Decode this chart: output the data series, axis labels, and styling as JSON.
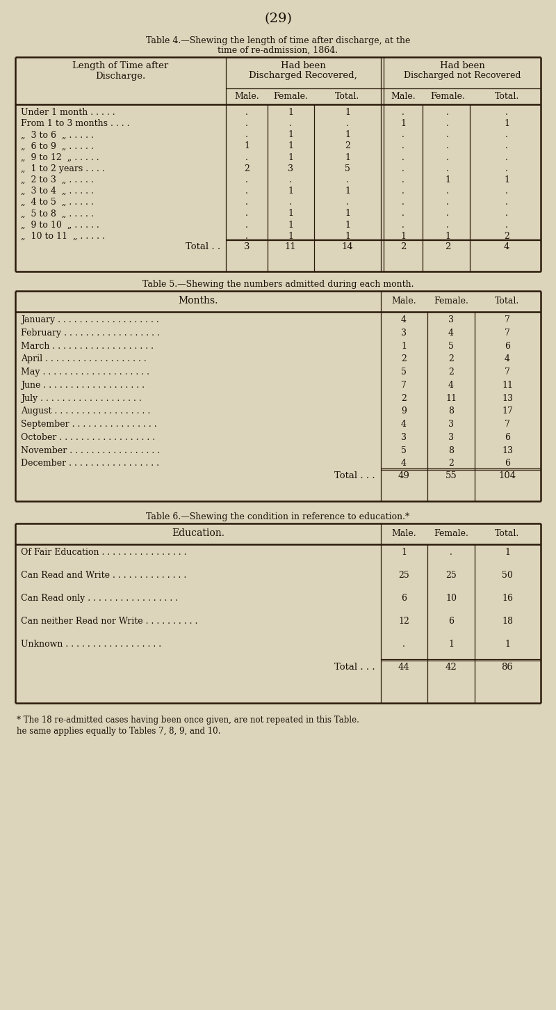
{
  "bg_color": "#ddd5bb",
  "page_number": "(29)",
  "table4_title1": "Table 4.—Shewing the length of time after discharge, at the",
  "table4_title2": "time of re-admission, 1864.",
  "table4_col1_header1": "Length of Time after",
  "table4_col1_header2": "Discharge.",
  "table4_col2_header1": "Had been",
  "table4_col2_header2": "Discharged Recovered,",
  "table4_col3_header1": "Had been",
  "table4_col3_header2": "Discharged not Recovered",
  "table4_subheaders": [
    "Male.",
    "Female.",
    "Total.",
    "Male.",
    "Female.",
    "Total."
  ],
  "table4_rows": [
    [
      "Under 1 month . . . . .",
      ".",
      "1",
      "1",
      ".",
      ".",
      "."
    ],
    [
      "From 1 to 3 months . . . .",
      ".",
      ".",
      ".",
      "1",
      ".",
      "1"
    ],
    [
      "„  3 to 6  „ . . . . .",
      ".",
      "1",
      "1",
      ".",
      ".",
      "."
    ],
    [
      "„  6 to 9  „ . . . . .",
      "1",
      "1",
      "2",
      ".",
      ".",
      "."
    ],
    [
      "„  9 to 12  „ . . . . .",
      ".",
      "1",
      "1",
      ".",
      ".",
      "."
    ],
    [
      "„  1 to 2 years . . . .",
      "2",
      "3",
      "5",
      ".",
      ".",
      "."
    ],
    [
      "„  2 to 3  „ . . . . .",
      ".",
      ".",
      ".",
      ".",
      "1",
      "1"
    ],
    [
      "„  3 to 4  „ . . . . .",
      ".",
      "1",
      "1",
      ".",
      ".",
      "."
    ],
    [
      "„  4 to 5  „ . . . . .",
      ".",
      ".",
      ".",
      ".",
      ".",
      "."
    ],
    [
      "„  5 to 8  „ . . . . .",
      ".",
      "1",
      "1",
      ".",
      ".",
      "."
    ],
    [
      "„  9 to 10  „ . . . . .",
      ".",
      "1",
      "1",
      ".",
      ".",
      "."
    ],
    [
      "„  10 to 11  „ . . . . .",
      ".",
      "1",
      "1",
      "1",
      "1",
      "2"
    ]
  ],
  "table4_total": [
    "Total . .",
    "3",
    "11",
    "14",
    "2",
    "2",
    "4"
  ],
  "table5_title": "Table 5.—Shewing the numbers admitted during each month.",
  "table5_col1_header": "Months.",
  "table5_subheaders": [
    "Male.",
    "Female.",
    "Total."
  ],
  "table5_rows": [
    [
      "January . . . . . . . . . . . . . . . . . . .",
      "4",
      "3",
      "7"
    ],
    [
      "February . . . . . . . . . . . . . . . . . .",
      "3",
      "4",
      "7"
    ],
    [
      "March . . . . . . . . . . . . . . . . . . .",
      "1",
      "5",
      "6"
    ],
    [
      "April . . . . . . . . . . . . . . . . . . .",
      "2",
      "2",
      "4"
    ],
    [
      "May . . . . . . . . . . . . . . . . . . . .",
      "5",
      "2",
      "7"
    ],
    [
      "June . . . . . . . . . . . . . . . . . . .",
      "7",
      "4",
      "11"
    ],
    [
      "July . . . . . . . . . . . . . . . . . . .",
      "2",
      "11",
      "13"
    ],
    [
      "August . . . . . . . . . . . . . . . . . .",
      "9",
      "8",
      "17"
    ],
    [
      "September . . . . . . . . . . . . . . . .",
      "4",
      "3",
      "7"
    ],
    [
      "October . . . . . . . . . . . . . . . . . .",
      "3",
      "3",
      "6"
    ],
    [
      "November . . . . . . . . . . . . . . . . .",
      "5",
      "8",
      "13"
    ],
    [
      "December . . . . . . . . . . . . . . . . .",
      "4",
      "2",
      "6"
    ]
  ],
  "table5_total": [
    "Total . . .",
    "49",
    "55",
    "104"
  ],
  "table6_title": "Table 6.—Shewing the condition in reference to education.*",
  "table6_col1_header": "Education.",
  "table6_subheaders": [
    "Male.",
    "Female.",
    "Total."
  ],
  "table6_rows": [
    [
      "Of Fair Education . . . . . . . . . . . . . . . .",
      "1",
      ".",
      "1"
    ],
    [
      "Can Read and Write . . . . . . . . . . . . . .",
      "25",
      "25",
      "50"
    ],
    [
      "Can Read only . . . . . . . . . . . . . . . . .",
      "6",
      "10",
      "16"
    ],
    [
      "Can neither Read nor Write . . . . . . . . . .",
      "12",
      "6",
      "18"
    ],
    [
      "Unknown . . . . . . . . . . . . . . . . . .",
      ".",
      "1",
      "1"
    ]
  ],
  "table6_total": [
    "Total . . .",
    "44",
    "42",
    "86"
  ],
  "footnote1": "* The 18 re-admitted cases having been once given, are not repeated in this Table.",
  "footnote2": "he same applies equally to Tables 7, 8, 9, and 10."
}
